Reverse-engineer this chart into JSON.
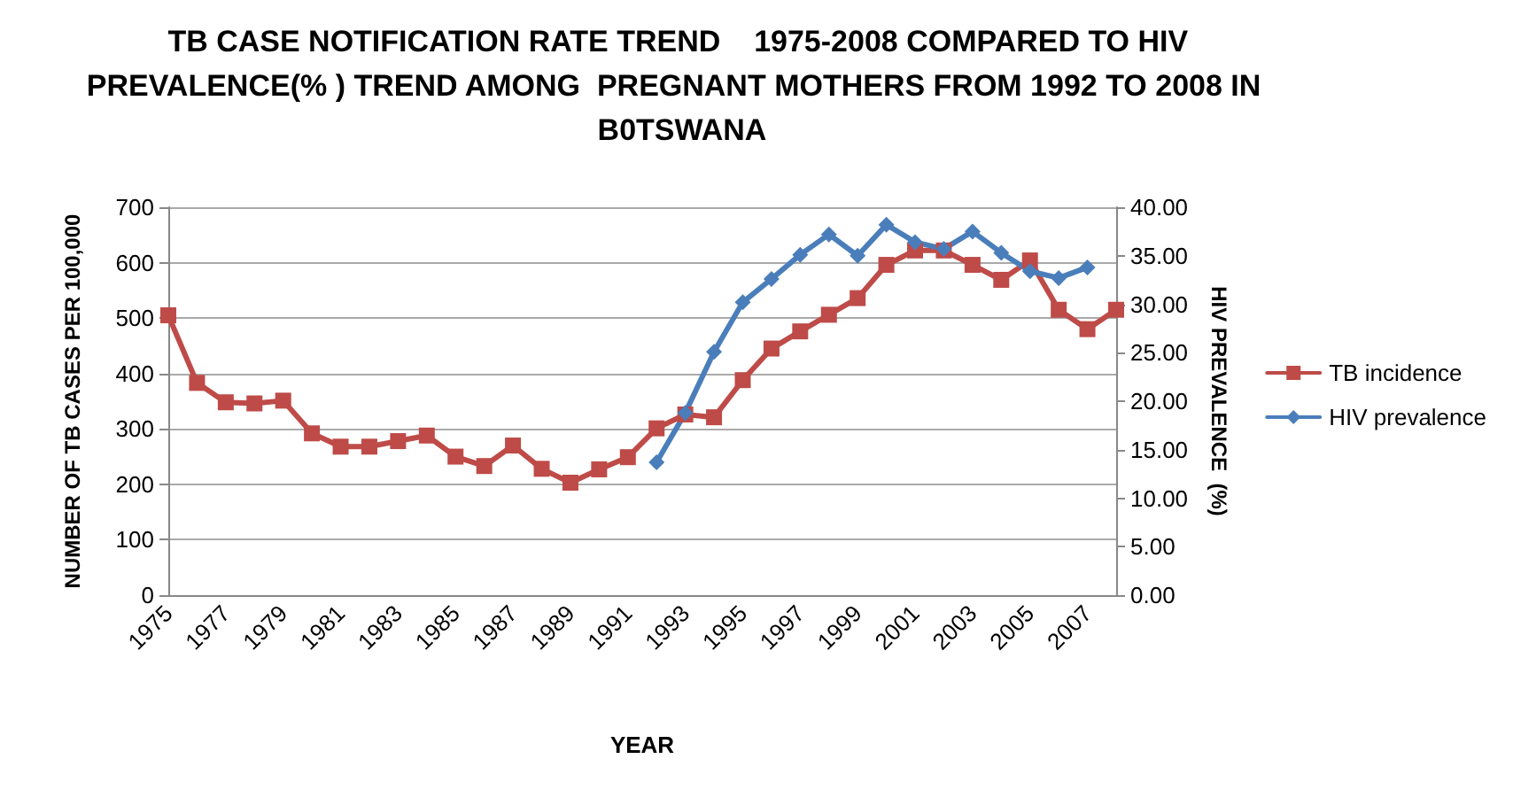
{
  "chart_data": {
    "type": "line",
    "title": "TB CASE NOTIFICATION RATE TREND    1975-2008 COMPARED TO HIV PREVALENCE(% ) TREND AMONG  PREGNANT MOTHERS FROM 1992 TO 2008 IN  B0TSWANA",
    "xlabel": "YEAR",
    "ylabel": "NUMBER OF TB CASES PER 100,000",
    "y2label": "HIV PREVALENCE  (%)",
    "categories": [
      "1975",
      null,
      "1977",
      null,
      "1979",
      null,
      "1981",
      null,
      "1983",
      null,
      "1985",
      null,
      "1987",
      null,
      "1989",
      null,
      "1991",
      null,
      "1993",
      null,
      "1995",
      null,
      "1997",
      null,
      "1999",
      null,
      "2001",
      null,
      "2003",
      null,
      "2005",
      null,
      "2007",
      null
    ],
    "series": [
      {
        "name": "TB incidence",
        "color": "#be4b48",
        "marker": "square",
        "values": [
          505,
          383,
          348,
          346,
          351,
          292,
          268,
          268,
          278,
          288,
          250,
          233,
          270,
          228,
          203,
          227,
          249,
          301,
          326,
          321,
          388,
          445,
          476,
          506,
          536,
          596,
          622,
          622,
          596,
          569,
          604,
          515,
          480,
          515
        ]
      },
      {
        "name": "HIV prevalence",
        "color": "#4a7ebb",
        "marker": "diamond",
        "axis": "y2",
        "values": [
          null,
          null,
          null,
          null,
          null,
          null,
          null,
          null,
          null,
          null,
          null,
          null,
          null,
          null,
          null,
          null,
          null,
          13.7,
          18.8,
          25.1,
          30.2,
          32.6,
          35.1,
          37.2,
          35.0,
          38.2,
          36.4,
          35.7,
          37.5,
          35.3,
          33.4,
          32.7,
          33.8,
          null
        ]
      }
    ],
    "ylim": [
      0,
      700
    ],
    "yticks": [
      0,
      100,
      200,
      300,
      400,
      500,
      600,
      700
    ],
    "y2lim": [
      0,
      40
    ],
    "y2ticks": [
      {
        "value": 0,
        "label": "0.00"
      },
      {
        "value": 5,
        "label": "5.00"
      },
      {
        "value": 10,
        "label": "10.00"
      },
      {
        "value": 15,
        "label": "15.00"
      },
      {
        "value": 20,
        "label": "20.00"
      },
      {
        "value": 25,
        "label": "25.00"
      },
      {
        "value": 30,
        "label": "30.00"
      },
      {
        "value": 35,
        "label": "35.00"
      },
      {
        "value": 40,
        "label": "40.00"
      }
    ],
    "grid": "y",
    "legend": "right",
    "line_style": "solid"
  }
}
